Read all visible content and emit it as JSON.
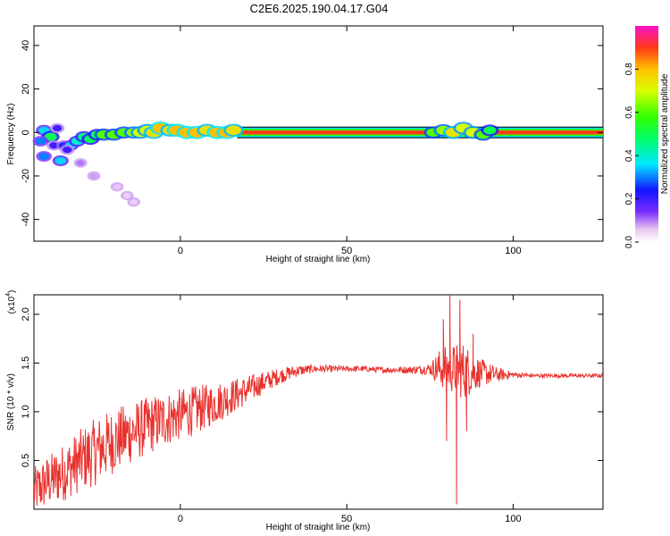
{
  "figure": {
    "title": "C2E6.2025.190.04.17.G04"
  },
  "chart_data": [
    {
      "type": "heatmap",
      "xlabel": "Height of straight line (km)",
      "ylabel": "Frequency (Hz)",
      "xlim": [
        -44,
        127
      ],
      "ylim": [
        -50,
        49
      ],
      "xticks": [
        0,
        50,
        100
      ],
      "yticks": [
        -40,
        -20,
        0,
        20,
        40
      ],
      "colorbar": {
        "label": "Normalized spectral amplitude",
        "range": [
          0,
          1
        ],
        "ticks": [
          "0.0",
          "0.2",
          "0.4",
          "0.6",
          "0.8"
        ]
      },
      "carrier_line": {
        "frequency_hz": 0,
        "x_range": [
          17,
          127
        ],
        "normalized_amplitude": 0.95
      },
      "blobs": [
        [
          -41,
          1,
          0.35
        ],
        [
          -39,
          -2,
          0.5
        ],
        [
          -41,
          -11,
          0.3
        ],
        [
          -38,
          -6,
          0.2
        ],
        [
          -35,
          -6,
          0.25
        ],
        [
          -33,
          -6,
          0.35
        ],
        [
          -31,
          -4,
          0.4
        ],
        [
          -29,
          -2,
          0.45
        ],
        [
          -27,
          -3,
          0.5
        ],
        [
          -25,
          -1,
          0.5
        ],
        [
          -23,
          -1,
          0.6
        ],
        [
          -20,
          -1,
          0.6
        ],
        [
          -17,
          0,
          0.6
        ],
        [
          -14,
          0,
          0.65
        ],
        [
          -12,
          0,
          0.7
        ],
        [
          -10,
          1,
          0.7
        ],
        [
          -8,
          0,
          0.75
        ],
        [
          -6,
          2,
          0.8
        ],
        [
          -3,
          1,
          0.75
        ],
        [
          -1,
          1,
          0.8
        ],
        [
          2,
          0,
          0.8
        ],
        [
          5,
          0,
          0.8
        ],
        [
          8,
          1,
          0.75
        ],
        [
          11,
          0,
          0.8
        ],
        [
          14,
          0,
          0.8
        ],
        [
          16,
          1,
          0.75
        ],
        [
          -36,
          -13,
          0.35
        ],
        [
          -26,
          -20,
          0.08
        ],
        [
          -19,
          -25,
          0.06
        ],
        [
          -16,
          -29,
          0.05
        ],
        [
          -14,
          -32,
          0.05
        ],
        [
          -30,
          -14,
          0.1
        ],
        [
          -34,
          -8,
          0.2
        ],
        [
          76,
          0,
          0.6
        ],
        [
          79,
          1,
          0.65
        ],
        [
          82,
          0,
          0.75
        ],
        [
          85,
          2,
          0.7
        ],
        [
          88,
          0,
          0.7
        ],
        [
          91,
          -1,
          0.6
        ],
        [
          93,
          1,
          0.5
        ],
        [
          -42,
          -4,
          0.3
        ],
        [
          -37,
          2,
          0.2
        ]
      ]
    },
    {
      "type": "line",
      "xlabel": "Height of straight line (km)",
      "ylabel": "SNR (10 * v/v)",
      "y_multiplier": "(x10",
      "y_multiplier_exponent": "4",
      "y_multiplier_close": ")",
      "xlim": [
        -44,
        127
      ],
      "ylim": [
        0,
        2.2
      ],
      "xticks": [
        0,
        50,
        100
      ],
      "yticks": [
        0.5,
        1.0,
        1.5,
        2.0
      ],
      "ytick_labels": [
        "0.5",
        "1.0",
        "1.5",
        "2.0"
      ],
      "color": "#e8322e",
      "envelope_base": [
        [
          -44,
          0.18
        ],
        [
          -40,
          0.28
        ],
        [
          -35,
          0.38
        ],
        [
          -30,
          0.5
        ],
        [
          -25,
          0.6
        ],
        [
          -20,
          0.7
        ],
        [
          -15,
          0.78
        ],
        [
          -10,
          0.85
        ],
        [
          -5,
          0.92
        ],
        [
          0,
          0.97
        ],
        [
          5,
          1.02
        ],
        [
          10,
          1.08
        ],
        [
          15,
          1.15
        ],
        [
          20,
          1.22
        ],
        [
          25,
          1.3
        ],
        [
          30,
          1.37
        ],
        [
          35,
          1.42
        ],
        [
          40,
          1.44
        ],
        [
          45,
          1.44
        ],
        [
          50,
          1.44
        ],
        [
          55,
          1.44
        ],
        [
          60,
          1.43
        ],
        [
          65,
          1.43
        ],
        [
          70,
          1.43
        ],
        [
          75,
          1.44
        ],
        [
          80,
          1.45
        ],
        [
          85,
          1.42
        ],
        [
          90,
          1.4
        ],
        [
          95,
          1.38
        ],
        [
          100,
          1.38
        ],
        [
          105,
          1.37
        ],
        [
          110,
          1.37
        ],
        [
          115,
          1.37
        ],
        [
          120,
          1.37
        ],
        [
          127,
          1.37
        ]
      ],
      "noise_amplitude": [
        [
          -44,
          0.25
        ],
        [
          -25,
          0.35
        ],
        [
          -10,
          0.3
        ],
        [
          5,
          0.25
        ],
        [
          20,
          0.15
        ],
        [
          30,
          0.08
        ],
        [
          40,
          0.04
        ],
        [
          50,
          0.03
        ],
        [
          60,
          0.03
        ],
        [
          70,
          0.04
        ],
        [
          75,
          0.06
        ],
        [
          78,
          0.2
        ],
        [
          85,
          0.3
        ],
        [
          90,
          0.15
        ],
        [
          95,
          0.08
        ],
        [
          100,
          0.03
        ],
        [
          105,
          0.02
        ],
        [
          127,
          0.02
        ]
      ],
      "key_points": [
        [
          -1,
          0.95
        ],
        [
          79,
          1.95
        ],
        [
          80,
          0.7
        ],
        [
          81,
          2.2
        ],
        [
          83,
          0.05
        ],
        [
          84,
          2.15
        ],
        [
          86,
          0.8
        ],
        [
          88,
          1.8
        ],
        [
          104,
          1.4
        ]
      ]
    }
  ]
}
